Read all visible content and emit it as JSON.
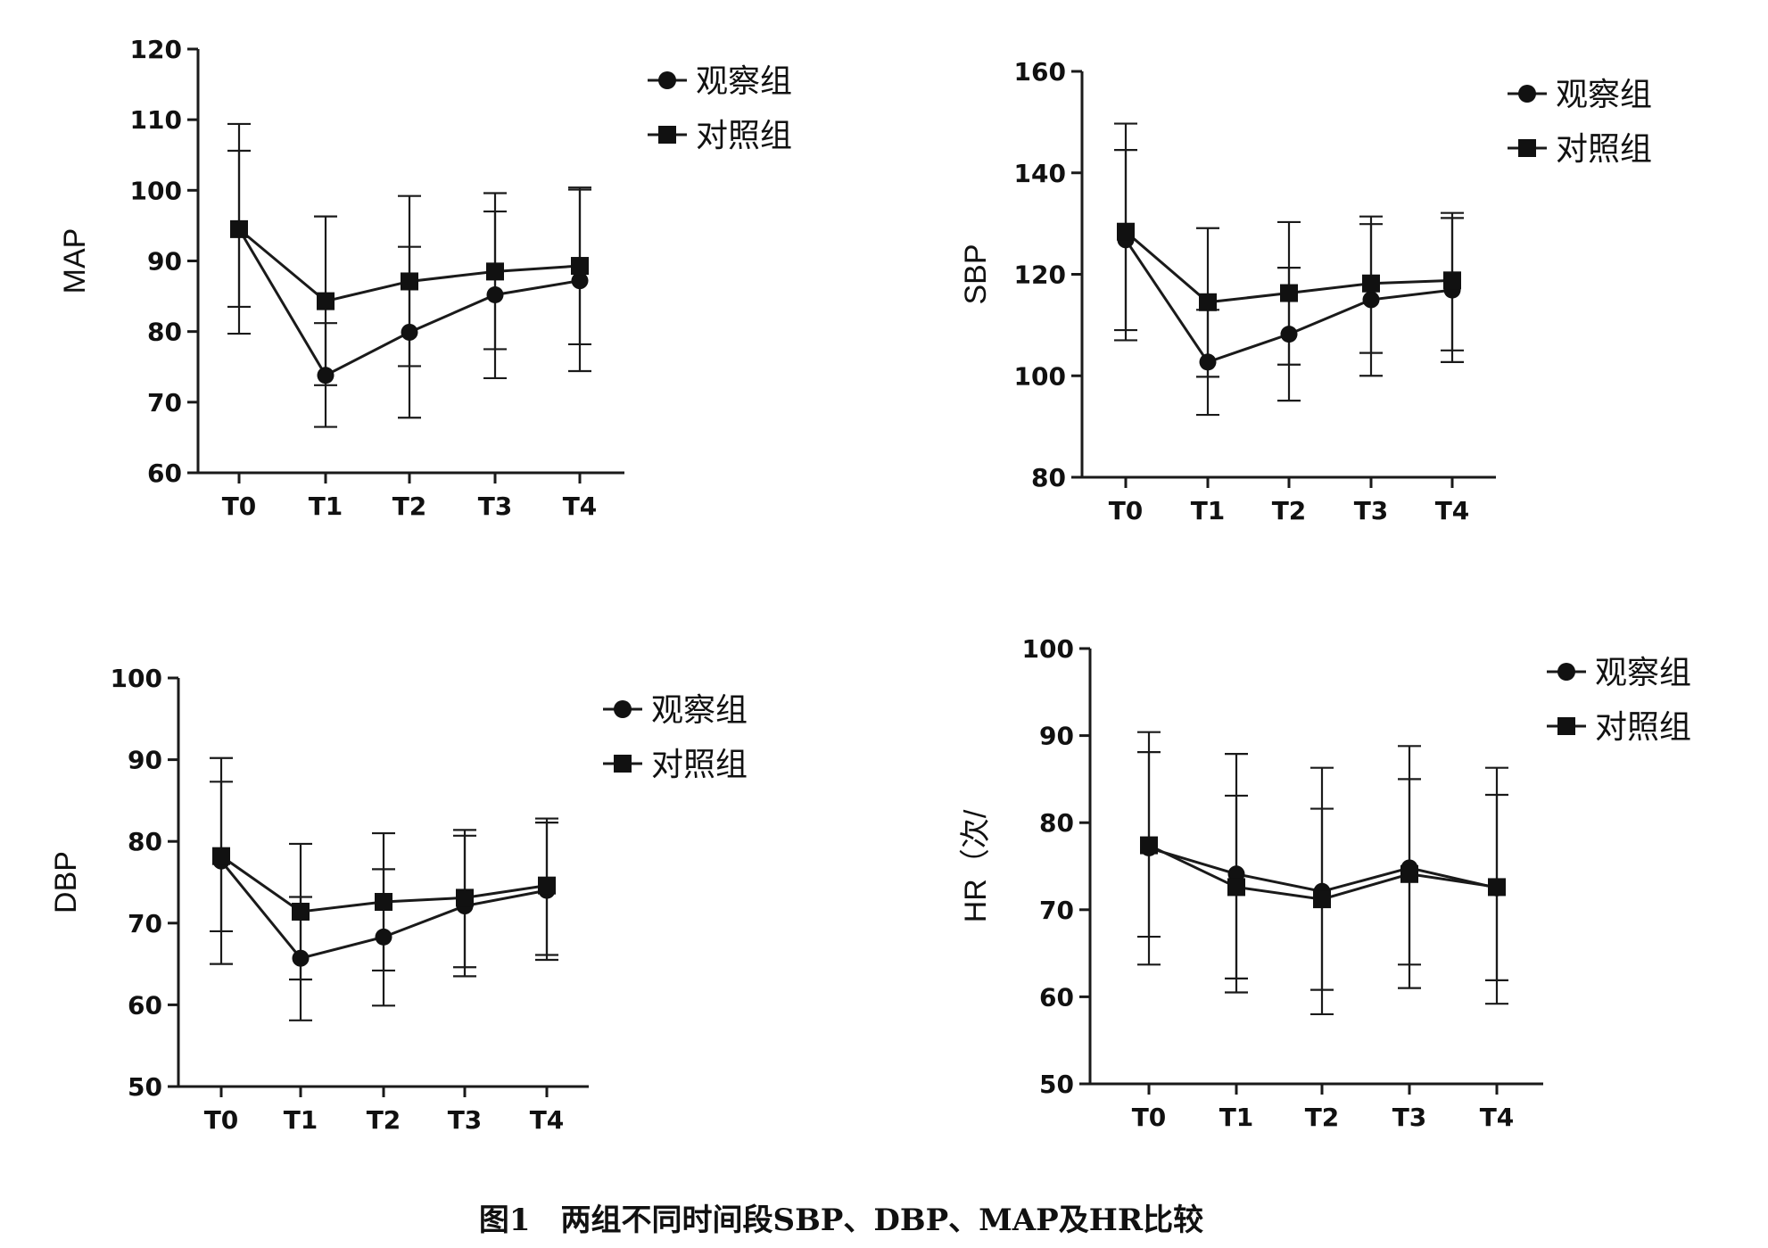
{
  "caption": "图1　两组不同时间段SBP、DBP、MAP及HR比较",
  "chart_data": [
    {
      "type": "line",
      "ylabel": "MAP",
      "categories": [
        "T0",
        "T1",
        "T2",
        "T3",
        "T4"
      ],
      "ylim": [
        60,
        120
      ],
      "yticks": [
        60,
        70,
        80,
        90,
        100,
        110,
        120
      ],
      "legend": "top-right",
      "grid": false,
      "series": [
        {
          "name": "观察组",
          "marker": "circle",
          "values": [
            94.5,
            73.8,
            79.9,
            85.2,
            87.2
          ],
          "err_low": [
            83.5,
            66.5,
            67.8,
            73.4,
            74.4
          ],
          "err_high": [
            105.6,
            81.2,
            92.0,
            97.0,
            100.1
          ]
        },
        {
          "name": "对照组",
          "marker": "square",
          "values": [
            94.5,
            84.3,
            87.1,
            88.5,
            89.3
          ],
          "err_low": [
            79.7,
            72.4,
            75.1,
            77.5,
            78.2
          ],
          "err_high": [
            109.4,
            96.3,
            99.2,
            99.6,
            100.4
          ]
        }
      ]
    },
    {
      "type": "line",
      "ylabel": "SBP",
      "categories": [
        "T0",
        "T1",
        "T2",
        "T3",
        "T4"
      ],
      "ylim": [
        80,
        160
      ],
      "yticks": [
        80,
        100,
        120,
        140,
        160
      ],
      "legend": "top-right",
      "grid": false,
      "series": [
        {
          "name": "观察组",
          "marker": "circle",
          "values": [
            126.8,
            102.7,
            108.2,
            115.0,
            116.9
          ],
          "err_low": [
            107.0,
            92.3,
            95.1,
            100.0,
            102.7
          ],
          "err_high": [
            144.5,
            113.0,
            121.3,
            129.9,
            131.1
          ]
        },
        {
          "name": "对照组",
          "marker": "square",
          "values": [
            128.4,
            114.5,
            116.3,
            118.2,
            118.8
          ],
          "err_low": [
            109.0,
            99.8,
            102.2,
            104.5,
            105.0
          ],
          "err_high": [
            149.7,
            129.1,
            130.3,
            131.4,
            132.1
          ]
        }
      ]
    },
    {
      "type": "line",
      "ylabel": "DBP",
      "categories": [
        "T0",
        "T1",
        "T2",
        "T3",
        "T4"
      ],
      "ylim": [
        50,
        100
      ],
      "yticks": [
        50,
        60,
        70,
        80,
        90,
        100
      ],
      "legend": "top-right",
      "grid": false,
      "series": [
        {
          "name": "观察组",
          "marker": "circle",
          "values": [
            77.6,
            65.7,
            68.3,
            72.1,
            74.0
          ],
          "err_low": [
            65.0,
            58.1,
            59.9,
            63.5,
            65.5
          ],
          "err_high": [
            87.3,
            73.2,
            76.6,
            80.7,
            82.3
          ]
        },
        {
          "name": "对照组",
          "marker": "square",
          "values": [
            78.2,
            71.4,
            72.6,
            73.1,
            74.6
          ],
          "err_low": [
            69.0,
            63.1,
            64.2,
            64.6,
            66.1
          ],
          "err_high": [
            90.2,
            79.7,
            81.0,
            81.4,
            82.8
          ]
        }
      ]
    },
    {
      "type": "line",
      "ylabel": "HR（次/",
      "categories": [
        "T0",
        "T1",
        "T2",
        "T3",
        "T4"
      ],
      "ylim": [
        50,
        100
      ],
      "yticks": [
        50,
        60,
        70,
        80,
        90,
        100
      ],
      "legend": "top-right",
      "grid": false,
      "series": [
        {
          "name": "观察组",
          "marker": "circle",
          "values": [
            77.1,
            74.1,
            72.1,
            74.8,
            72.5
          ],
          "err_low": [
            63.7,
            60.5,
            58.0,
            61.0,
            59.2
          ],
          "err_high": [
            88.1,
            83.1,
            81.6,
            85.0,
            83.2
          ]
        },
        {
          "name": "对照组",
          "marker": "square",
          "values": [
            77.4,
            72.6,
            71.2,
            74.1,
            72.6
          ],
          "err_low": [
            66.9,
            62.1,
            60.8,
            63.7,
            61.9
          ],
          "err_high": [
            90.4,
            87.9,
            86.3,
            88.8,
            86.3
          ]
        }
      ]
    }
  ]
}
